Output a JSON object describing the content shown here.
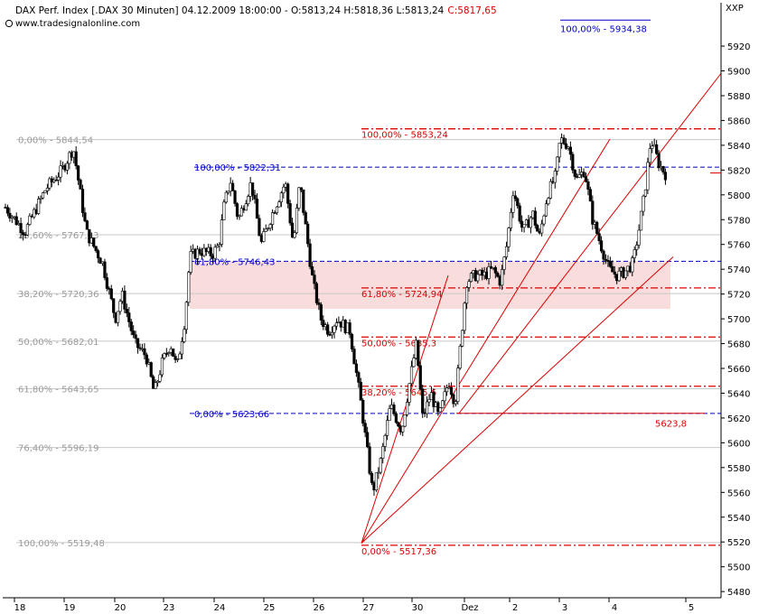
{
  "header": {
    "title_line": "DAX Perf. Index [.DAX  30 Minuten] 04.12.2009 18:00:00 - O:5813,24 H:5818,36 L:5813,24",
    "close_part": "C:5817,65",
    "source": "www.tradesignalonline.com",
    "corner_label": "XXP"
  },
  "colors": {
    "candles": "#000000",
    "grey_fib": "#9a9a9a",
    "blue_fib": "#0000cc",
    "red_fib": "#dd0000",
    "zone_fill": "#f9dcdc",
    "close": "#dd0000"
  },
  "chart_data": {
    "type": "candlestick",
    "title": "DAX Perf. Index [.DAX  30 Minuten]",
    "ylim": [
      5475,
      5955
    ],
    "y_ticks": [
      5480,
      5500,
      5520,
      5540,
      5560,
      5580,
      5600,
      5620,
      5640,
      5660,
      5680,
      5700,
      5720,
      5740,
      5760,
      5780,
      5800,
      5820,
      5840,
      5860,
      5880,
      5900,
      5920
    ],
    "x_ticks": [
      "18",
      "19",
      "20",
      "23",
      "24",
      "25",
      "26",
      "27",
      "30",
      "Dez",
      "2",
      "3",
      "4",
      "5"
    ],
    "series_close_path": [
      [
        0,
        5790
      ],
      [
        1.2,
        5770
      ],
      [
        2.5,
        5805
      ],
      [
        3.5,
        5820
      ],
      [
        4.2,
        5838
      ],
      [
        5,
        5770
      ],
      [
        6,
        5745
      ],
      [
        6.8,
        5700
      ],
      [
        7.2,
        5720
      ],
      [
        8,
        5680
      ],
      [
        8.7,
        5670
      ],
      [
        9.2,
        5640
      ],
      [
        9.7,
        5665
      ],
      [
        10.2,
        5680
      ],
      [
        10.6,
        5660
      ],
      [
        11.1,
        5700
      ],
      [
        11.4,
        5750
      ],
      [
        12,
        5755
      ],
      [
        12.8,
        5752
      ],
      [
        13.2,
        5760
      ],
      [
        13.5,
        5790
      ],
      [
        13.9,
        5812
      ],
      [
        14.4,
        5780
      ],
      [
        15.2,
        5810
      ],
      [
        15.8,
        5760
      ],
      [
        16.5,
        5785
      ],
      [
        17.3,
        5810
      ],
      [
        17.8,
        5760
      ],
      [
        18.2,
        5810
      ],
      [
        19,
        5730
      ],
      [
        19.5,
        5700
      ],
      [
        20,
        5690
      ],
      [
        20.5,
        5700
      ],
      [
        21.3,
        5690
      ],
      [
        22,
        5630
      ],
      [
        22.7,
        5560
      ],
      [
        23.2,
        5585
      ],
      [
        23.8,
        5630
      ],
      [
        24.5,
        5610
      ],
      [
        25,
        5650
      ],
      [
        25.4,
        5680
      ],
      [
        25.8,
        5620
      ],
      [
        26.3,
        5640
      ],
      [
        26.8,
        5620
      ],
      [
        27.4,
        5650
      ],
      [
        27.8,
        5632
      ],
      [
        28.5,
        5730
      ],
      [
        29,
        5735
      ],
      [
        29.6,
        5735
      ],
      [
        30.1,
        5740
      ],
      [
        30.6,
        5730
      ],
      [
        31,
        5760
      ],
      [
        31.4,
        5805
      ],
      [
        32,
        5770
      ],
      [
        32.6,
        5785
      ],
      [
        33,
        5765
      ],
      [
        33.5,
        5800
      ],
      [
        34,
        5815
      ],
      [
        34.3,
        5845
      ],
      [
        34.8,
        5840
      ],
      [
        35.3,
        5812
      ],
      [
        35.8,
        5820
      ],
      [
        36.3,
        5780
      ],
      [
        36.8,
        5760
      ],
      [
        37.3,
        5740
      ],
      [
        37.8,
        5735
      ],
      [
        38.3,
        5738
      ],
      [
        38.8,
        5745
      ],
      [
        39.2,
        5775
      ],
      [
        39.5,
        5800
      ],
      [
        39.9,
        5845
      ],
      [
        40.4,
        5825
      ],
      [
        40.8,
        5817
      ]
    ],
    "fib_left": [
      {
        "label": "0,00% - 5844,54",
        "value": 5844.54
      },
      {
        "label": "23,60% - 5767,83",
        "value": 5767.83
      },
      {
        "label": "38,20% - 5720,36",
        "value": 5720.36
      },
      {
        "label": "50,00% - 5682,01",
        "value": 5682.01
      },
      {
        "label": "61,80% - 5643,65",
        "value": 5643.65
      },
      {
        "label": "76,40% - 5596,19",
        "value": 5596.19
      },
      {
        "label": "100,00% - 5519,48",
        "value": 5519.48
      }
    ],
    "fib_blue": [
      {
        "label": "100,00% - 5822,31",
        "value": 5822.31
      },
      {
        "label": "61,80% - 5746,43",
        "value": 5746.43
      },
      {
        "label": "0,00% - 5623,66",
        "value": 5623.66
      },
      {
        "label": "100,00% - 5934,38",
        "value": 5934.38
      }
    ],
    "fib_red": [
      {
        "label": "100,00% - 5853,24",
        "value": 5853.24
      },
      {
        "label": "61,80% - 5724,94",
        "value": 5724.94
      },
      {
        "label": "50,00% - 5685,3",
        "value": 5685.3
      },
      {
        "label": "38,20% - 5645,6",
        "value": 5645.6
      },
      {
        "label": "0,00% - 5517,36",
        "value": 5517.36
      }
    ],
    "support_line": {
      "label": "5623,8",
      "value": 5623.8
    },
    "close_value": 5817.65
  }
}
